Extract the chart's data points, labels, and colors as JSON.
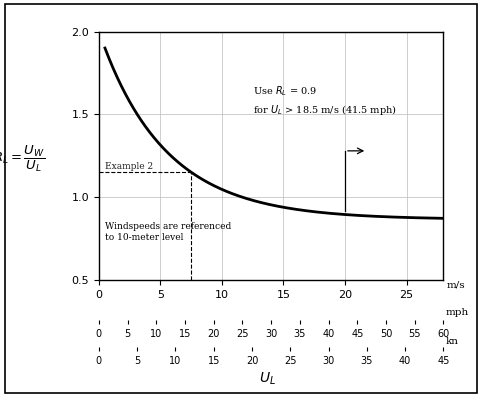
{
  "xlim": [
    0,
    28
  ],
  "ylim": [
    0.5,
    2.0
  ],
  "yticks": [
    0.5,
    1.0,
    1.5,
    2.0
  ],
  "xticks_ms": [
    0,
    5,
    10,
    15,
    20,
    25
  ],
  "xticks_mph": [
    0,
    5,
    10,
    15,
    20,
    25,
    30,
    35,
    40,
    45,
    50,
    55,
    60
  ],
  "xticks_kn": [
    0,
    5,
    10,
    15,
    20,
    25,
    30,
    35,
    40,
    45
  ],
  "curve_color": "#000000",
  "grid_color": "#bbbbbb",
  "background": "#ffffff",
  "example2_x": 7.5,
  "annotation_wind": "Windspeeds are referenced\nto 10-meter level",
  "ms_label": "m/s",
  "mph_label": "mph",
  "kn_label": "kn",
  "curve_a": 0.865,
  "curve_b": 1.1,
  "curve_c": 0.18,
  "curve_d": 0.04,
  "curve_e": 0.5
}
